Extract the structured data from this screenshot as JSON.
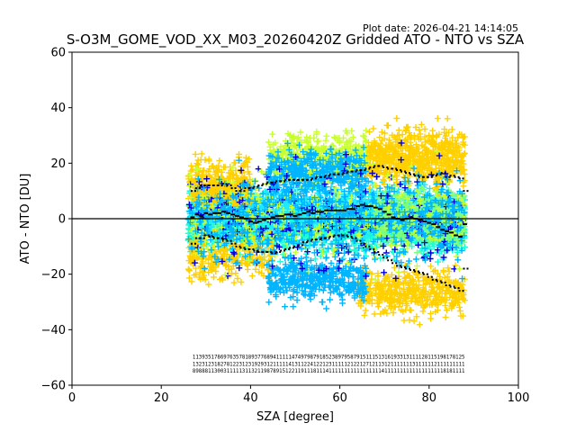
{
  "chart_data": {
    "type": "scatter",
    "title": "S-O3M_GOME_VOD_XX_M03_20260420Z Gridded ATO - NTO vs SZA",
    "plot_date": "Plot date: 2026-04-21 14:14:05",
    "xlabel": "SZA [degree]",
    "ylabel": "ATO - NTO [DU]",
    "xlim": [
      0,
      100
    ],
    "ylim": [
      -60,
      60
    ],
    "x_ticks": [
      0,
      20,
      40,
      60,
      80,
      100
    ],
    "y_ticks": [
      -60,
      -40,
      -20,
      0,
      20,
      40,
      60
    ],
    "x_tick_labels": [
      "0",
      "20",
      "40",
      "60",
      "80",
      "100"
    ],
    "y_tick_labels": [
      "−60",
      "−40",
      "−20",
      "0",
      "20",
      "40",
      "60"
    ],
    "reference_line_y": 0,
    "marker": "+",
    "colors": [
      "#0000dd",
      "#00b4ff",
      "#1ee6ff",
      "#19ffd2",
      "#2cffb0",
      "#7dff7a",
      "#c8ff2e",
      "#ffd000",
      "#ffc000"
    ],
    "mean_x": [
      27,
      28,
      29,
      30,
      31,
      32,
      33,
      34,
      35,
      36,
      37,
      38,
      39,
      40,
      41,
      42,
      43,
      44,
      45,
      46,
      47,
      48,
      49,
      50,
      51,
      52,
      53,
      54,
      55,
      56,
      57,
      58,
      59,
      60,
      61,
      62,
      63,
      64,
      65,
      66,
      67,
      68,
      69,
      70,
      71,
      72,
      73,
      74,
      75,
      76,
      77,
      78,
      79,
      80,
      81,
      82,
      83,
      84,
      85,
      86,
      87,
      88
    ],
    "mean_y": [
      0.5,
      1.5,
      1,
      2,
      1.5,
      2,
      2,
      2.5,
      2,
      1.5,
      1,
      0.5,
      0,
      -1,
      -1.5,
      -1,
      -0.5,
      0,
      0.5,
      1,
      1,
      1.5,
      1.5,
      1,
      1.5,
      2,
      2.5,
      2,
      2.5,
      2.5,
      3,
      3,
      3,
      3,
      3,
      3.5,
      3.5,
      4.5,
      5,
      4.5,
      4.5,
      4,
      3.5,
      2.5,
      1.5,
      0.5,
      0,
      -0.5,
      0,
      0.5,
      0,
      -0.5,
      -1,
      -1.5,
      -2,
      -3,
      -4,
      -4.5,
      -5,
      -6,
      -6.5,
      -2
    ],
    "std_upper": [
      10,
      11,
      12,
      12,
      12,
      12,
      12,
      12.5,
      12,
      11,
      10,
      10,
      11,
      11,
      11.5,
      12,
      12.5,
      13,
      13,
      13.5,
      13.5,
      14,
      14,
      14,
      14,
      14,
      14,
      14.5,
      15,
      15,
      15.5,
      16,
      16,
      16,
      16.5,
      17,
      17,
      17.5,
      17.5,
      18,
      18.5,
      19,
      19,
      18.5,
      18,
      18,
      17.5,
      17,
      16.5,
      16,
      15.5,
      15,
      15,
      15,
      15.5,
      16,
      16.5,
      15,
      15.5,
      15,
      14.5,
      10
    ],
    "std_lower": [
      -9,
      -7,
      -7,
      -6,
      -6.5,
      -7,
      -7,
      -7.5,
      -8,
      -9,
      -10,
      -10.5,
      -11,
      -11,
      -11.5,
      -12,
      -12,
      -12,
      -12.5,
      -12,
      -11.5,
      -11,
      -10.5,
      -10,
      -9.5,
      -8.5,
      -8,
      -7.5,
      -7.5,
      -7,
      -7,
      -6.5,
      -6,
      -6,
      -6,
      -6.5,
      -7,
      -8,
      -9,
      -10,
      -11,
      -12,
      -13,
      -14,
      -15,
      -16,
      -17,
      -17.5,
      -18,
      -18.5,
      -19,
      -19.5,
      -20,
      -21,
      -22,
      -22.5,
      -23,
      -24,
      -24.5,
      -25,
      -26,
      -18
    ],
    "scatter_clusters": [
      {
        "x_range": [
          26,
          88
        ],
        "y_center": -2,
        "y_spread": 16,
        "count": 2200,
        "color_index": 3
      },
      {
        "x_range": [
          26,
          88
        ],
        "y_center": 4,
        "y_spread": 14,
        "count": 900,
        "color_index": 2
      },
      {
        "x_range": [
          68,
          88
        ],
        "y_center": 0,
        "y_spread": 14,
        "count": 700,
        "color_index": 5
      },
      {
        "x_range": [
          26,
          40
        ],
        "y_center": 12,
        "y_spread": 14,
        "count": 350,
        "color_index": 7
      },
      {
        "x_range": [
          26,
          45
        ],
        "y_center": -14,
        "y_spread": 14,
        "count": 250,
        "color_index": 7
      },
      {
        "x_range": [
          66,
          88
        ],
        "y_center": 22,
        "y_spread": 16,
        "count": 650,
        "color_index": 7
      },
      {
        "x_range": [
          64,
          88
        ],
        "y_center": -26,
        "y_spread": 14,
        "count": 450,
        "color_index": 7
      },
      {
        "x_range": [
          44,
          66
        ],
        "y_center": 22,
        "y_spread": 14,
        "count": 450,
        "color_index": 6
      },
      {
        "x_range": [
          44,
          66
        ],
        "y_center": 16,
        "y_spread": 14,
        "count": 400,
        "color_index": 1
      },
      {
        "x_range": [
          44,
          66
        ],
        "y_center": -22,
        "y_spread": 12,
        "count": 400,
        "color_index": 1
      },
      {
        "x_range": [
          26,
          88
        ],
        "y_center": 0,
        "y_spread": 30,
        "count": 260,
        "color_index": 0
      },
      {
        "x_range": [
          26,
          88
        ],
        "y_center": 0,
        "y_spread": 28,
        "count": 350,
        "color_index": 6
      },
      {
        "x_range": [
          26,
          88
        ],
        "y_center": 0,
        "y_spread": 24,
        "count": 600,
        "color_index": 1
      }
    ],
    "count_labels": {
      "x_start": 27,
      "x_end": 88,
      "rows": [
        {
          "y": -50.5,
          "text": "1139351786976357818937768941111147497987918523897958791511151316193313111128115198178125"
        },
        {
          "y": -53.0,
          "text": "1323123182781223123192931211111413112241221231111121221271211312111111131111112111111111"
        },
        {
          "y": -55.5,
          "text": "8988811300311111311321198789151221191118111411111111111111111411111111111111111118181111"
        }
      ]
    }
  }
}
